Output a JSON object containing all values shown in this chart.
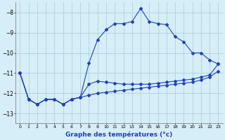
{
  "hours": [
    0,
    1,
    2,
    3,
    4,
    5,
    6,
    7,
    8,
    9,
    10,
    11,
    12,
    13,
    14,
    15,
    16,
    17,
    18,
    19,
    20,
    21,
    22,
    23
  ],
  "main_y": [
    -11.0,
    -12.3,
    -12.55,
    -12.3,
    -12.3,
    -12.55,
    -12.3,
    -12.2,
    -10.5,
    -9.35,
    -8.85,
    -8.55,
    -8.55,
    -8.45,
    -7.8,
    -8.45,
    -8.55,
    -8.6,
    -9.2,
    -9.45,
    -10.0,
    -10.0,
    -10.35,
    -10.55
  ],
  "mid_y": [
    -11.0,
    -12.3,
    -12.55,
    -12.3,
    -12.3,
    -12.55,
    -12.3,
    -12.2,
    -11.55,
    -11.4,
    -11.45,
    -11.5,
    -11.55,
    -11.55,
    -11.55,
    -11.55,
    -11.5,
    -11.45,
    -11.4,
    -11.35,
    -11.3,
    -11.2,
    -11.1,
    -10.55
  ],
  "bot_y": [
    -11.0,
    -12.3,
    -12.55,
    -12.3,
    -12.3,
    -12.55,
    -12.3,
    -12.2,
    -12.1,
    -12.0,
    -11.95,
    -11.9,
    -11.85,
    -11.8,
    -11.75,
    -11.7,
    -11.65,
    -11.6,
    -11.55,
    -11.5,
    -11.45,
    -11.35,
    -11.2,
    -10.9
  ],
  "background_color": "#d6eef8",
  "line_color": "#2040c0",
  "grid_color": "#a8ccd8",
  "xlabel": "Graphe des températures (°c)",
  "ylim": [
    -13.5,
    -7.5
  ],
  "xlim": [
    -0.5,
    23.5
  ],
  "yticks": [
    -13,
    -12,
    -11,
    -10,
    -9,
    -8
  ],
  "xticks": [
    0,
    1,
    2,
    3,
    4,
    5,
    6,
    7,
    8,
    9,
    10,
    11,
    12,
    13,
    14,
    15,
    16,
    17,
    18,
    19,
    20,
    21,
    22,
    23
  ]
}
